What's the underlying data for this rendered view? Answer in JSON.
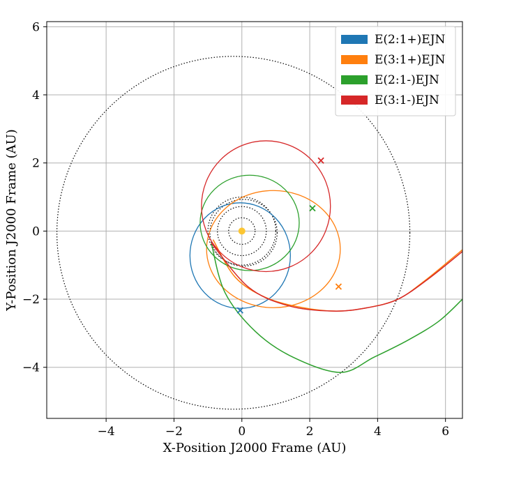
{
  "chart_data": {
    "type": "line",
    "title": "",
    "xlabel": "X-Position J2000 Frame (AU)",
    "ylabel": "Y-Position J2000 Frame (AU)",
    "xlim": [
      -5.75,
      6.5
    ],
    "ylim": [
      -5.5,
      6.15
    ],
    "xticks": [
      -4,
      -2,
      0,
      2,
      4,
      6
    ],
    "yticks": [
      -4,
      -2,
      0,
      2,
      4,
      6
    ],
    "xtick_labels": [
      "−4",
      "−2",
      "0",
      "2",
      "4",
      "6"
    ],
    "ytick_labels": [
      "−4",
      "−2",
      "0",
      "2",
      "4",
      "6"
    ],
    "grid": true,
    "legend_position": "top-right",
    "sun": {
      "x": 0.0,
      "y": 0.0,
      "color": "#fcc633"
    },
    "reference_orbits": [
      {
        "name": "mercury-like",
        "cx": 0.0,
        "cy": 0.0,
        "rx": 0.39,
        "ry": 0.39
      },
      {
        "name": "venus-like",
        "cx": 0.0,
        "cy": 0.0,
        "rx": 0.72,
        "ry": 0.72
      },
      {
        "name": "earth",
        "cx": 0.0,
        "cy": 0.0,
        "rx": 1.0,
        "ry": 1.0
      },
      {
        "name": "mars",
        "cx": 0.05,
        "cy": -0.05,
        "rx": 0.99,
        "ry": 0.98
      },
      {
        "name": "jupiter",
        "cx": -0.25,
        "cy": -0.05,
        "rx": 5.2,
        "ry": 5.18
      }
    ],
    "series": [
      {
        "name": "E(2:1+)EJN",
        "color": "#1f77b4",
        "ellipse": {
          "cx": -0.05,
          "cy": -0.72,
          "rx": 1.48,
          "ry": 1.55
        },
        "trajectory": [],
        "marker": {
          "x": -0.05,
          "y": -2.33
        }
      },
      {
        "name": "E(3:1+)EJN",
        "color": "#ff7f0e",
        "ellipse": {
          "cx": 0.93,
          "cy": -0.53,
          "rx": 1.97,
          "ry": 1.72
        },
        "trajectory": [
          [
            -0.85,
            -0.25
          ],
          [
            -0.2,
            -1.35
          ],
          [
            0.7,
            -1.95
          ],
          [
            1.8,
            -2.25
          ],
          [
            2.8,
            -2.35
          ],
          [
            3.7,
            -2.25
          ],
          [
            4.6,
            -2.0
          ],
          [
            5.4,
            -1.45
          ],
          [
            6.5,
            -0.55
          ]
        ],
        "marker": {
          "x": 2.85,
          "y": -1.63
        }
      },
      {
        "name": "E(2:1-)EJN",
        "color": "#2ca02c",
        "ellipse": {
          "cx": 0.23,
          "cy": 0.24,
          "rx": 1.46,
          "ry": 1.4
        },
        "trajectory": [
          [
            -0.9,
            -0.35
          ],
          [
            -0.5,
            -1.8
          ],
          [
            0.4,
            -2.95
          ],
          [
            1.5,
            -3.7
          ],
          [
            2.9,
            -4.15
          ],
          [
            3.9,
            -3.7
          ],
          [
            4.9,
            -3.2
          ],
          [
            5.8,
            -2.65
          ],
          [
            6.5,
            -2.0
          ]
        ],
        "marker": {
          "x": 2.08,
          "y": 0.67
        }
      },
      {
        "name": "E(3:1-)EJN",
        "color": "#d62728",
        "ellipse": {
          "cx": 0.71,
          "cy": 0.73,
          "rx": 1.9,
          "ry": 1.92
        },
        "trajectory": [
          [
            -0.9,
            -0.35
          ],
          [
            0.2,
            -1.65
          ],
          [
            1.4,
            -2.2
          ],
          [
            2.7,
            -2.35
          ],
          [
            3.7,
            -2.25
          ],
          [
            4.6,
            -2.0
          ],
          [
            5.5,
            -1.4
          ],
          [
            6.5,
            -0.6
          ]
        ],
        "marker": {
          "x": 2.33,
          "y": 2.07
        }
      }
    ]
  }
}
